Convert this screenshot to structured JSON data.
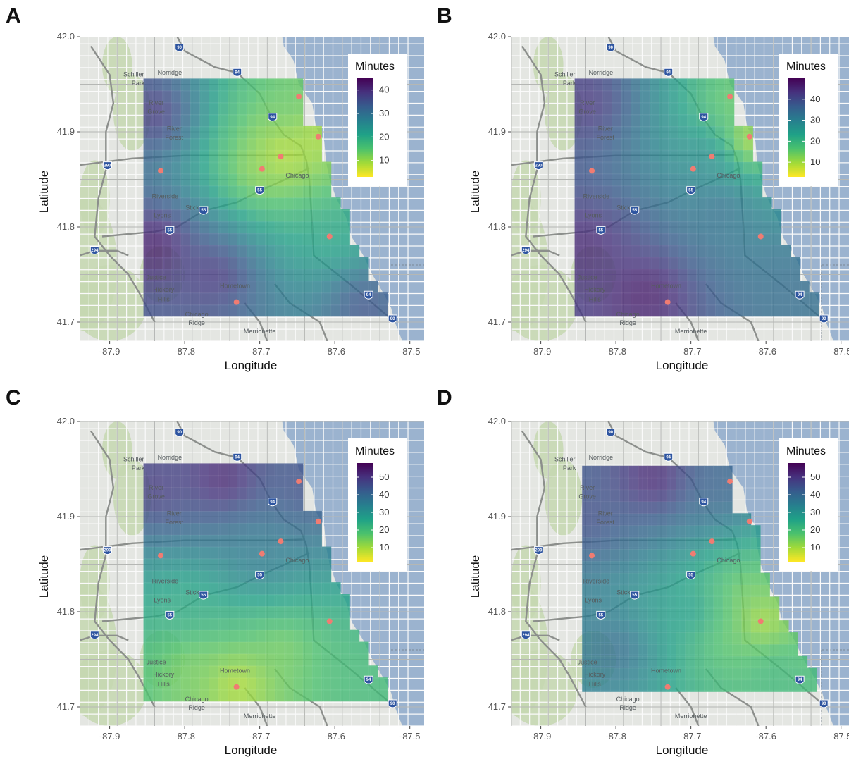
{
  "axes": {
    "xlabel": "Longitude",
    "ylabel": "Latitude",
    "x_ticks": [
      "-87.9",
      "-87.8",
      "-87.7",
      "-87.6",
      "-87.5"
    ],
    "y_ticks": [
      "42.0",
      "41.9",
      "41.8",
      "41.7"
    ],
    "x_range": [
      -87.94,
      -87.48
    ],
    "y_range": [
      41.68,
      42.0
    ]
  },
  "legend": {
    "title": "Minutes",
    "placement": "top-right"
  },
  "map_labels": [
    {
      "text": "Schiller",
      "lon": -87.868,
      "lat": 41.958
    },
    {
      "text": "Park",
      "lon": -87.862,
      "lat": 41.949
    },
    {
      "text": "Norridge",
      "lon": -87.82,
      "lat": 41.96
    },
    {
      "text": "River",
      "lon": -87.838,
      "lat": 41.928
    },
    {
      "text": "Grove",
      "lon": -87.838,
      "lat": 41.919
    },
    {
      "text": "River",
      "lon": -87.814,
      "lat": 41.901
    },
    {
      "text": "Forest",
      "lon": -87.814,
      "lat": 41.892
    },
    {
      "text": "Riverside",
      "lon": -87.826,
      "lat": 41.83
    },
    {
      "text": "Lyons",
      "lon": -87.83,
      "lat": 41.81
    },
    {
      "text": "Stickney",
      "lon": -87.783,
      "lat": 41.818
    },
    {
      "text": "Justice",
      "lon": -87.838,
      "lat": 41.745
    },
    {
      "text": "Hickory",
      "lon": -87.828,
      "lat": 41.732
    },
    {
      "text": "Hills",
      "lon": -87.828,
      "lat": 41.722
    },
    {
      "text": "Hometown",
      "lon": -87.733,
      "lat": 41.736
    },
    {
      "text": "Chicago",
      "lon": -87.784,
      "lat": 41.706
    },
    {
      "text": "Ridge",
      "lon": -87.784,
      "lat": 41.697
    },
    {
      "text": "Merrionette",
      "lon": -87.7,
      "lat": 41.688
    },
    {
      "text": "Chicago",
      "lon": -87.65,
      "lat": 41.852
    }
  ],
  "shields": [
    {
      "text": "90",
      "lon": -87.807,
      "lat": 41.988
    },
    {
      "text": "94",
      "lon": -87.73,
      "lat": 41.962
    },
    {
      "text": "94",
      "lon": -87.683,
      "lat": 41.915
    },
    {
      "text": "290",
      "lon": -87.903,
      "lat": 41.864
    },
    {
      "text": "55",
      "lon": -87.7,
      "lat": 41.838
    },
    {
      "text": "55",
      "lon": -87.775,
      "lat": 41.817
    },
    {
      "text": "55",
      "lon": -87.82,
      "lat": 41.796
    },
    {
      "text": "294",
      "lon": -87.92,
      "lat": 41.775
    },
    {
      "text": "94",
      "lon": -87.555,
      "lat": 41.728
    },
    {
      "text": "90",
      "lon": -87.523,
      "lat": 41.703
    }
  ],
  "panels": [
    {
      "letter": "A",
      "chart_data": {
        "type": "heatmap",
        "xlabel": "Longitude",
        "ylabel": "Latitude",
        "xlim": [
          -87.94,
          -87.48
        ],
        "ylim": [
          41.68,
          42.0
        ],
        "legend_title": "Minutes",
        "legend_ticks": [
          "40",
          "30",
          "20",
          "10"
        ],
        "color_range": [
          3,
          45
        ],
        "grid": {
          "lon_min": -87.855,
          "lon_max": -87.525,
          "lat_min": 41.706,
          "lat_max": 41.955,
          "lat_top_after_east": 41.955
        },
        "hotspots": [
          {
            "lon": -87.67,
            "lat": 41.875,
            "minutes": 5
          },
          {
            "lon": -87.625,
            "lat": 41.895,
            "minutes": 7
          },
          {
            "lon": -87.655,
            "lat": 41.925,
            "minutes": 14
          },
          {
            "lon": -87.7,
            "lat": 41.86,
            "minutes": 10
          },
          {
            "lon": -87.605,
            "lat": 41.79,
            "minutes": 20
          },
          {
            "lon": -87.76,
            "lat": 41.75,
            "minutes": 40
          },
          {
            "lon": -87.84,
            "lat": 41.78,
            "minutes": 44
          },
          {
            "lon": -87.84,
            "lat": 41.92,
            "minutes": 40
          },
          {
            "lon": -87.56,
            "lat": 41.72,
            "minutes": 36
          }
        ],
        "stations": [
          {
            "lon": -87.648,
            "lat": 41.937
          },
          {
            "lon": -87.622,
            "lat": 41.895
          },
          {
            "lon": -87.672,
            "lat": 41.874
          },
          {
            "lon": -87.697,
            "lat": 41.861
          },
          {
            "lon": -87.832,
            "lat": 41.859
          },
          {
            "lon": -87.607,
            "lat": 41.79
          },
          {
            "lon": -87.731,
            "lat": 41.721
          }
        ]
      }
    },
    {
      "letter": "B",
      "chart_data": {
        "type": "heatmap",
        "xlabel": "Longitude",
        "ylabel": "Latitude",
        "xlim": [
          -87.94,
          -87.48
        ],
        "ylim": [
          41.68,
          42.0
        ],
        "legend_title": "Minutes",
        "legend_ticks": [
          "40",
          "30",
          "20",
          "10"
        ],
        "color_range": [
          3,
          50
        ],
        "grid": {
          "lon_min": -87.855,
          "lon_max": -87.525,
          "lat_min": 41.706,
          "lat_max": 41.955,
          "lat_top_after_east": 41.955
        },
        "hotspots": [
          {
            "lon": -87.625,
            "lat": 41.89,
            "minutes": 4
          },
          {
            "lon": -87.645,
            "lat": 41.935,
            "minutes": 14
          },
          {
            "lon": -87.67,
            "lat": 41.875,
            "minutes": 30
          },
          {
            "lon": -87.66,
            "lat": 41.82,
            "minutes": 34
          },
          {
            "lon": -87.76,
            "lat": 41.73,
            "minutes": 48
          },
          {
            "lon": -87.84,
            "lat": 41.78,
            "minutes": 46
          },
          {
            "lon": -87.84,
            "lat": 41.93,
            "minutes": 44
          },
          {
            "lon": -87.56,
            "lat": 41.74,
            "minutes": 34
          }
        ],
        "stations": [
          {
            "lon": -87.648,
            "lat": 41.937
          },
          {
            "lon": -87.622,
            "lat": 41.895
          },
          {
            "lon": -87.672,
            "lat": 41.874
          },
          {
            "lon": -87.697,
            "lat": 41.861
          },
          {
            "lon": -87.832,
            "lat": 41.859
          },
          {
            "lon": -87.607,
            "lat": 41.79
          },
          {
            "lon": -87.731,
            "lat": 41.721
          }
        ]
      }
    },
    {
      "letter": "C",
      "chart_data": {
        "type": "heatmap",
        "xlabel": "Longitude",
        "ylabel": "Latitude",
        "xlim": [
          -87.94,
          -87.48
        ],
        "ylim": [
          41.68,
          42.0
        ],
        "legend_title": "Minutes",
        "legend_ticks": [
          "50",
          "40",
          "30",
          "20",
          "10"
        ],
        "color_range": [
          2,
          58
        ],
        "grid": {
          "lon_min": -87.855,
          "lon_max": -87.525,
          "lat_min": 41.706,
          "lat_max": 41.955,
          "lat_top_after_east": 41.955
        },
        "hotspots": [
          {
            "lon": -87.73,
            "lat": 41.725,
            "minutes": 6
          },
          {
            "lon": -87.79,
            "lat": 41.74,
            "minutes": 14
          },
          {
            "lon": -87.67,
            "lat": 41.76,
            "minutes": 14
          },
          {
            "lon": -87.8,
            "lat": 41.81,
            "minutes": 24
          },
          {
            "lon": -87.7,
            "lat": 41.86,
            "minutes": 36
          },
          {
            "lon": -87.75,
            "lat": 41.94,
            "minutes": 55
          },
          {
            "lon": -87.84,
            "lat": 41.93,
            "minutes": 50
          },
          {
            "lon": -87.64,
            "lat": 41.93,
            "minutes": 46
          },
          {
            "lon": -87.56,
            "lat": 41.73,
            "minutes": 20
          }
        ],
        "stations": [
          {
            "lon": -87.648,
            "lat": 41.937
          },
          {
            "lon": -87.622,
            "lat": 41.895
          },
          {
            "lon": -87.672,
            "lat": 41.874
          },
          {
            "lon": -87.697,
            "lat": 41.861
          },
          {
            "lon": -87.832,
            "lat": 41.859
          },
          {
            "lon": -87.607,
            "lat": 41.79
          },
          {
            "lon": -87.731,
            "lat": 41.721
          }
        ]
      }
    },
    {
      "letter": "D",
      "chart_data": {
        "type": "heatmap",
        "xlabel": "Longitude",
        "ylabel": "Latitude",
        "xlim": [
          -87.94,
          -87.48
        ],
        "ylim": [
          41.68,
          42.0
        ],
        "legend_title": "Minutes",
        "legend_ticks": [
          "50",
          "40",
          "30",
          "20",
          "10"
        ],
        "color_range": [
          2,
          58
        ],
        "grid": {
          "lon_min": -87.845,
          "lon_max": -87.53,
          "lat_min": 41.716,
          "lat_max": 41.945,
          "lat_top_after_east": 41.945
        },
        "hotspots": [
          {
            "lon": -87.607,
            "lat": 41.79,
            "minutes": 5
          },
          {
            "lon": -87.63,
            "lat": 41.82,
            "minutes": 14
          },
          {
            "lon": -87.65,
            "lat": 41.77,
            "minutes": 16
          },
          {
            "lon": -87.59,
            "lat": 41.74,
            "minutes": 22
          },
          {
            "lon": -87.7,
            "lat": 41.8,
            "minutes": 28
          },
          {
            "lon": -87.75,
            "lat": 41.94,
            "minutes": 55
          },
          {
            "lon": -87.84,
            "lat": 41.9,
            "minutes": 46
          },
          {
            "lon": -87.8,
            "lat": 41.76,
            "minutes": 40
          },
          {
            "lon": -87.66,
            "lat": 41.93,
            "minutes": 42
          }
        ],
        "stations": [
          {
            "lon": -87.648,
            "lat": 41.937
          },
          {
            "lon": -87.622,
            "lat": 41.895
          },
          {
            "lon": -87.672,
            "lat": 41.874
          },
          {
            "lon": -87.697,
            "lat": 41.861
          },
          {
            "lon": -87.832,
            "lat": 41.859
          },
          {
            "lon": -87.607,
            "lat": 41.79
          },
          {
            "lon": -87.731,
            "lat": 41.721
          }
        ]
      }
    }
  ],
  "colors": {
    "lake": "#9bb3cf",
    "land": "#e4e6e2",
    "park": "#c6d7b0",
    "road": "#b5b7b4",
    "highway": "#8c8f8c",
    "station": "#f07c72",
    "viridis": [
      "#440154",
      "#46327e",
      "#365c8d",
      "#277f8e",
      "#1fa187",
      "#4ac16d",
      "#a0da39",
      "#fde725"
    ]
  }
}
